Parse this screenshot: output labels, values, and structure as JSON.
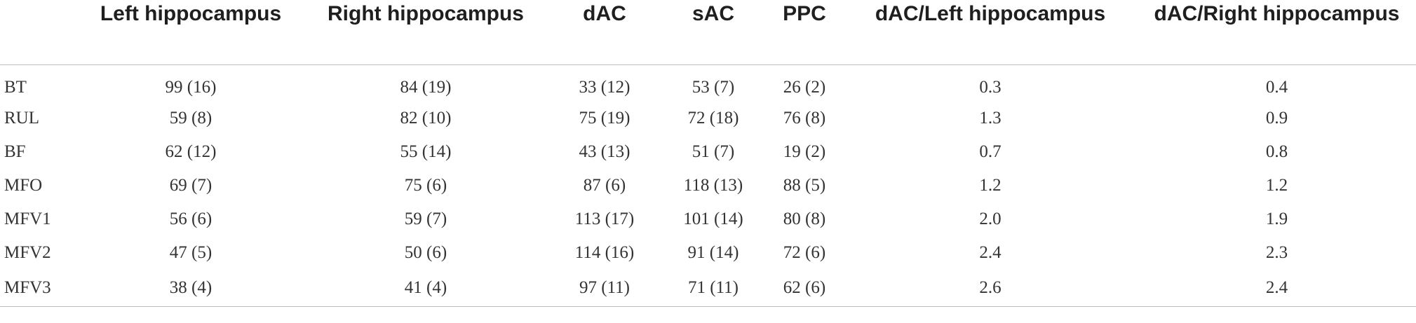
{
  "table": {
    "headers": [
      "",
      "Left hippocampus",
      "Right hippocampus",
      "dAC",
      "sAC",
      "PPC",
      "dAC/Left hippocampus",
      "dAC/Right hippocampus"
    ],
    "rows": [
      [
        "BT",
        "99 (16)",
        "84 (19)",
        "33 (12)",
        "53 (7)",
        "26 (2)",
        "0.3",
        "0.4"
      ],
      [
        "RUL",
        "59 (8)",
        "82 (10)",
        "75 (19)",
        "72 (18)",
        "76 (8)",
        "1.3",
        "0.9"
      ],
      [
        "BF",
        "62 (12)",
        "55 (14)",
        "43 (13)",
        "51 (7)",
        "19 (2)",
        "0.7",
        "0.8"
      ],
      [
        "MFO",
        "69 (7)",
        "75 (6)",
        "87 (6)",
        "118 (13)",
        "88 (5)",
        "1.2",
        "1.2"
      ],
      [
        "MFV1",
        "56 (6)",
        "59 (7)",
        "113 (17)",
        "101 (14)",
        "80 (8)",
        "2.0",
        "1.9"
      ],
      [
        "MFV2",
        "47 (5)",
        "50 (6)",
        "114 (16)",
        "91 (14)",
        "72 (6)",
        "2.4",
        "2.3"
      ],
      [
        "MFV3",
        "38 (4)",
        "41 (4)",
        "97 (11)",
        "71 (11)",
        "62 (6)",
        "2.6",
        "2.4"
      ]
    ]
  }
}
